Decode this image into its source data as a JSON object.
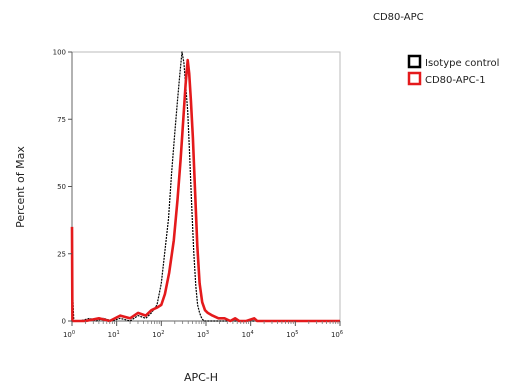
{
  "chart_data": {
    "type": "line",
    "title": "CD80-APC",
    "xlabel": "APC-H",
    "ylabel": "Percent of Max",
    "x_scale": "log",
    "xlim": [
      1,
      1000000
    ],
    "ylim": [
      0,
      100
    ],
    "x_ticks": [
      {
        "base": "10",
        "exp": "0",
        "value": 1
      },
      {
        "base": "10",
        "exp": "1",
        "value": 10
      },
      {
        "base": "10",
        "exp": "2",
        "value": 100
      },
      {
        "base": "10",
        "exp": "3",
        "value": 1000
      },
      {
        "base": "10",
        "exp": "4",
        "value": 10000
      },
      {
        "base": "10",
        "exp": "5",
        "value": 100000
      },
      {
        "base": "10",
        "exp": "6",
        "value": 1000000
      }
    ],
    "y_ticks": [
      "0",
      "25",
      "50",
      "75",
      "100"
    ],
    "grid": false,
    "legend_position": "top-right",
    "series": [
      {
        "name": "Isotype control",
        "color": "#000000",
        "points": [
          [
            1.0,
            0
          ],
          [
            1.05,
            8
          ],
          [
            1.1,
            0
          ],
          [
            1.5,
            0
          ],
          [
            2.5,
            1
          ],
          [
            3.5,
            0
          ],
          [
            5,
            1
          ],
          [
            8,
            0
          ],
          [
            12,
            1
          ],
          [
            20,
            0
          ],
          [
            30,
            2
          ],
          [
            45,
            1
          ],
          [
            60,
            3
          ],
          [
            80,
            6
          ],
          [
            100,
            14
          ],
          [
            120,
            26
          ],
          [
            145,
            38
          ],
          [
            170,
            55
          ],
          [
            200,
            70
          ],
          [
            230,
            82
          ],
          [
            260,
            92
          ],
          [
            290,
            100
          ],
          [
            320,
            96
          ],
          [
            350,
            88
          ],
          [
            390,
            78
          ],
          [
            430,
            62
          ],
          [
            480,
            42
          ],
          [
            530,
            26
          ],
          [
            590,
            13
          ],
          [
            650,
            6
          ],
          [
            720,
            3
          ],
          [
            800,
            1
          ],
          [
            900,
            0
          ],
          [
            1200,
            0
          ],
          [
            10000,
            0
          ],
          [
            1000000,
            0
          ]
        ]
      },
      {
        "name": "CD80-APC-1",
        "color": "#e41a1c",
        "points": [
          [
            1.0,
            35
          ],
          [
            1.02,
            0
          ],
          [
            1.3,
            0
          ],
          [
            2,
            0
          ],
          [
            4,
            1
          ],
          [
            7,
            0
          ],
          [
            12,
            2
          ],
          [
            20,
            1
          ],
          [
            30,
            3
          ],
          [
            45,
            2
          ],
          [
            60,
            4
          ],
          [
            80,
            5
          ],
          [
            100,
            6
          ],
          [
            120,
            10
          ],
          [
            150,
            18
          ],
          [
            190,
            30
          ],
          [
            230,
            45
          ],
          [
            270,
            60
          ],
          [
            310,
            75
          ],
          [
            350,
            88
          ],
          [
            390,
            97
          ],
          [
            420,
            92
          ],
          [
            460,
            82
          ],
          [
            510,
            68
          ],
          [
            570,
            48
          ],
          [
            640,
            28
          ],
          [
            720,
            14
          ],
          [
            820,
            7
          ],
          [
            950,
            4
          ],
          [
            1100,
            3
          ],
          [
            1400,
            2
          ],
          [
            1900,
            1
          ],
          [
            2600,
            1
          ],
          [
            3500,
            0
          ],
          [
            4500,
            1
          ],
          [
            5500,
            0
          ],
          [
            8000,
            0
          ],
          [
            12000,
            1
          ],
          [
            14000,
            0
          ],
          [
            1000000,
            0
          ]
        ]
      }
    ]
  }
}
